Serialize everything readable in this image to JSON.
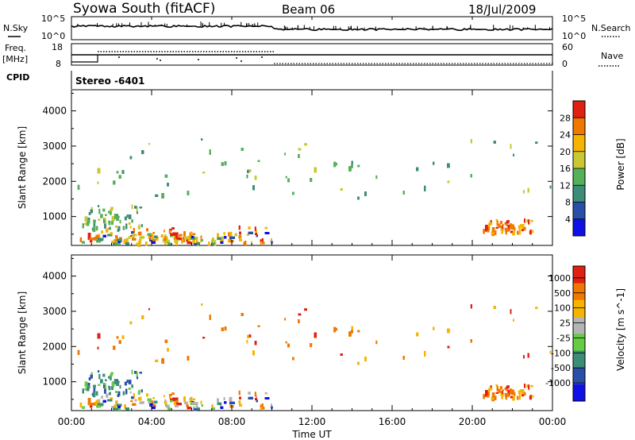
{
  "header": {
    "title": "Syowa South (fitACF)",
    "beam": "Beam 06",
    "date": "18/Jul/2009"
  },
  "panels": {
    "nsky_label": "N.Sky",
    "nsearch_label": "N.Search",
    "freq_label_1": "Freq.",
    "freq_label_2": "[MHz]",
    "nave_label": "Nave",
    "cpid_label": "CPID",
    "stereo_text": "Stereo -6401",
    "noise_left_ticks": [
      "10^5",
      "10^0"
    ],
    "noise_right_ticks": [
      "10^5",
      "10^0"
    ],
    "freq_left_ticks": [
      "18",
      "8"
    ],
    "freq_right_ticks": [
      "60",
      "0"
    ]
  },
  "chart_data": [
    {
      "type": "heatmap",
      "title": "",
      "xlabel": "Time UT",
      "ylabel": "Slant Range [km]",
      "x_ticks": [
        "00:00",
        "04:00",
        "08:00",
        "12:00",
        "16:00",
        "20:00",
        "00:00"
      ],
      "y_ticks": [
        "1000",
        "2000",
        "3000",
        "4000"
      ],
      "xlim": [
        0,
        24
      ],
      "ylim": [
        180,
        4600
      ],
      "colorbar_label": "Power [dB]",
      "colorbar_ticks": [
        "4",
        "8",
        "12",
        "16",
        "20",
        "24",
        "28"
      ],
      "colors": [
        "#1010e6",
        "#2a4fa8",
        "#3c8c78",
        "#55b05a",
        "#c8c832",
        "#f5b400",
        "#f07800",
        "#e02010"
      ],
      "regions": [
        {
          "t0": 0.3,
          "t1": 10.0,
          "r0": 250,
          "r1": 700,
          "level": 6
        },
        {
          "t0": 2.0,
          "t1": 9.0,
          "r0": 200,
          "r1": 500,
          "level": 5
        },
        {
          "t0": 0.5,
          "t1": 3.5,
          "r0": 600,
          "r1": 1300,
          "level": 3
        },
        {
          "t0": 0.0,
          "t1": 24.0,
          "r0": 1500,
          "r1": 3200,
          "level": 3
        },
        {
          "t0": 20.5,
          "t1": 23.0,
          "r0": 500,
          "r1": 900,
          "level": 6
        }
      ]
    },
    {
      "type": "heatmap",
      "title": "",
      "xlabel": "Time UT",
      "ylabel": "Slant Range [km]",
      "x_ticks": [
        "00:00",
        "04:00",
        "08:00",
        "12:00",
        "16:00",
        "20:00",
        "00:00"
      ],
      "y_ticks": [
        "1000",
        "2000",
        "3000",
        "4000"
      ],
      "xlim": [
        0,
        24
      ],
      "ylim": [
        180,
        4600
      ],
      "colorbar_label": "Velocity [m s^-1]",
      "colorbar_ticks": [
        "1000",
        "500",
        "100",
        "25",
        "-25",
        "-100",
        "-500",
        "-1000"
      ],
      "colors": [
        "#1010e6",
        "#2a4fa8",
        "#3c8c78",
        "#66cc44",
        "#b4b4b4",
        "#f5b400",
        "#f07800",
        "#e02010"
      ],
      "regions": [
        {
          "t0": 0.3,
          "t1": 10.0,
          "r0": 250,
          "r1": 700,
          "level": 5
        },
        {
          "t0": 0.5,
          "t1": 3.5,
          "r0": 600,
          "r1": 1300,
          "level": 2
        },
        {
          "t0": 0.0,
          "t1": 24.0,
          "r0": 1500,
          "r1": 3200,
          "level": 6
        },
        {
          "t0": 20.5,
          "t1": 23.0,
          "r0": 500,
          "r1": 900,
          "level": 6
        }
      ]
    }
  ]
}
